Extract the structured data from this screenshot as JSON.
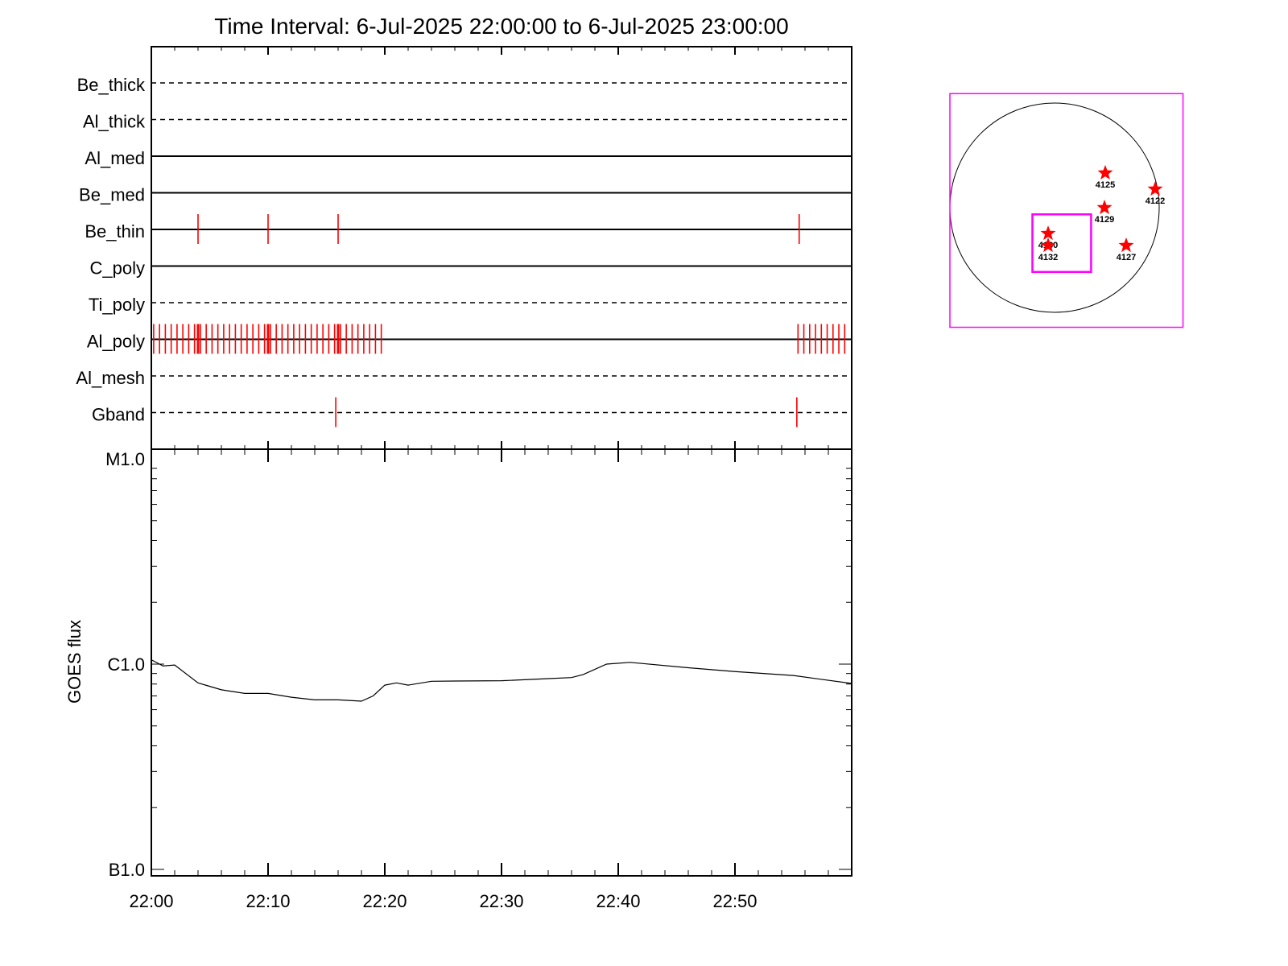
{
  "chart_data": [
    {
      "type": "event-timeline",
      "title": "Time Interval:  6-Jul-2025 22:00:00 to  6-Jul-2025 23:00:00",
      "x_range": [
        "22:00",
        "23:00"
      ],
      "rows": [
        {
          "label": "Be_thick",
          "style": "dashed",
          "events": []
        },
        {
          "label": "Al_thick",
          "style": "dashed",
          "events": []
        },
        {
          "label": "Al_med",
          "style": "solid",
          "events": []
        },
        {
          "label": "Be_med",
          "style": "solid",
          "events": []
        },
        {
          "label": "Be_thin",
          "style": "solid",
          "events": [
            4.0,
            10.0,
            16.0,
            55.5
          ]
        },
        {
          "label": "C_poly",
          "style": "solid",
          "events": []
        },
        {
          "label": "Ti_poly",
          "style": "dashed",
          "events": []
        },
        {
          "label": "Al_poly",
          "style": "solid",
          "event_ranges": [
            [
              0.2,
              19.8,
              0.5
            ],
            [
              55.4,
              59.6,
              0.5
            ]
          ],
          "events": [
            4.0,
            10.0,
            16.0
          ]
        },
        {
          "label": "Al_mesh",
          "style": "dashed",
          "events": []
        },
        {
          "label": "Gband",
          "style": "dashed",
          "events": [
            15.8,
            55.3
          ]
        }
      ],
      "event_color": "#ff0000"
    },
    {
      "type": "line",
      "ylabel": "GOES flux",
      "yscale": "log",
      "ylim": [
        1e-07,
        1e-05
      ],
      "ytick_labels": [
        {
          "v": 1e-05,
          "t": "M1.0"
        },
        {
          "v": 1e-06,
          "t": "C1.0"
        },
        {
          "v": 1e-07,
          "t": "B1.0"
        }
      ],
      "xtick_labels": [
        "22:00",
        "22:10",
        "22:20",
        "22:30",
        "22:40",
        "22:50"
      ],
      "x_minutes": [
        0,
        1,
        2,
        4,
        6,
        8,
        10,
        12,
        14,
        16,
        18,
        19,
        20,
        21,
        22,
        24,
        26,
        30,
        34,
        36,
        37,
        39,
        41,
        46,
        50,
        55,
        60
      ],
      "values": [
        1.05e-06,
        9.8e-07,
        9.9e-07,
        8.1e-07,
        7.5e-07,
        7.2e-07,
        7.2e-07,
        6.9e-07,
        6.7e-07,
        6.7e-07,
        6.6e-07,
        7e-07,
        7.9e-07,
        8.1e-07,
        7.9e-07,
        8.25e-07,
        8.27e-07,
        8.3e-07,
        8.5e-07,
        8.6e-07,
        8.9e-07,
        1e-06,
        1.02e-06,
        9.6e-07,
        9.2e-07,
        8.8e-07,
        8.05e-07
      ]
    },
    {
      "type": "scatter",
      "units": "arcsec",
      "disk_radius": 945,
      "points": [
        {
          "label": "4125",
          "x": 458,
          "y": 313
        },
        {
          "label": "4122",
          "x": 909,
          "y": 167
        },
        {
          "label": "4129",
          "x": 451,
          "y": 0
        },
        {
          "label": "4130",
          "x": -58,
          "y": -233
        },
        {
          "label": "4132",
          "x": -58,
          "y": -342
        },
        {
          "label": "4127",
          "x": 647,
          "y": -342
        }
      ],
      "fov_box": [
        [
          -945,
          1030
        ],
        [
          1160,
          -1080
        ]
      ],
      "inner_box": [
        [
          -200,
          -60
        ],
        [
          330,
          -580
        ]
      ],
      "box_color": "#ff00ff",
      "marker_color": "#ff0000"
    }
  ]
}
